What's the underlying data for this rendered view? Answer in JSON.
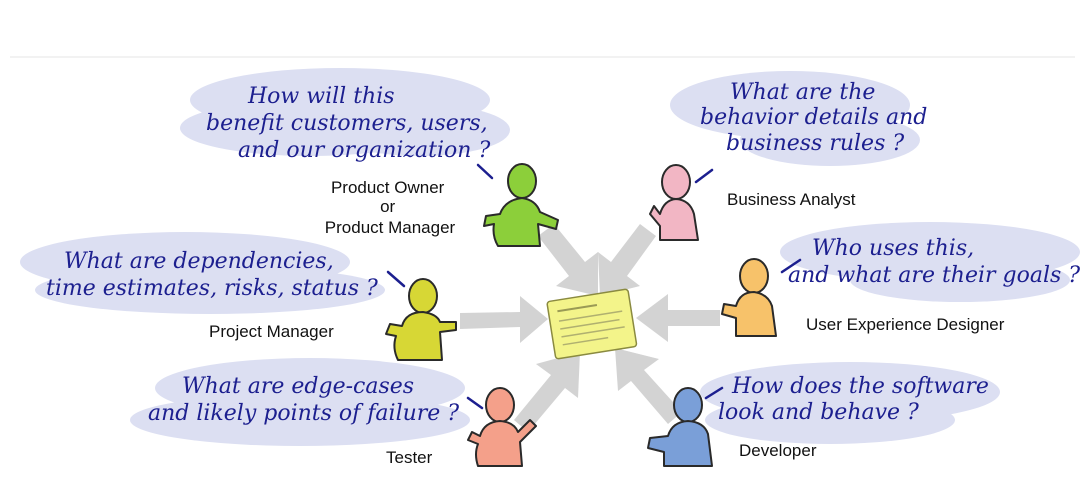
{
  "diagram": {
    "center": {
      "label": "story-card",
      "color": "#f3f48a"
    },
    "roles": [
      {
        "key": "product_owner",
        "label_lines": [
          "Product Owner",
          "or",
          "Product Manager"
        ],
        "color": "#8ccf3a",
        "question_lines": [
          "How will this",
          "benefit customers, users,",
          "and our organization ?"
        ]
      },
      {
        "key": "business_analyst",
        "label_lines": [
          "Business Analyst"
        ],
        "color": "#f2b6c4",
        "question_lines": [
          "What are the",
          "behavior details and",
          "business rules ?"
        ]
      },
      {
        "key": "project_manager",
        "label_lines": [
          "Project Manager"
        ],
        "color": "#d7d735",
        "question_lines": [
          "What are dependencies,",
          "time estimates, risks, status ?"
        ]
      },
      {
        "key": "ux_designer",
        "label_lines": [
          "User Experience Designer"
        ],
        "color": "#f7c26a",
        "question_lines": [
          "Who uses this,",
          "and what are their goals ?"
        ]
      },
      {
        "key": "tester",
        "label_lines": [
          "Tester"
        ],
        "color": "#f4a08a",
        "question_lines": [
          "What are edge-cases",
          "and likely points of failure ?"
        ]
      },
      {
        "key": "developer",
        "label_lines": [
          "Developer"
        ],
        "color": "#7a9fd8",
        "question_lines": [
          "How does the software",
          "look and behave ?"
        ]
      }
    ],
    "colors": {
      "ink": "#1c1f8f",
      "cloud": "#dcdff2",
      "arrow": "#d3d3d3",
      "card": "#f3f48a"
    }
  }
}
